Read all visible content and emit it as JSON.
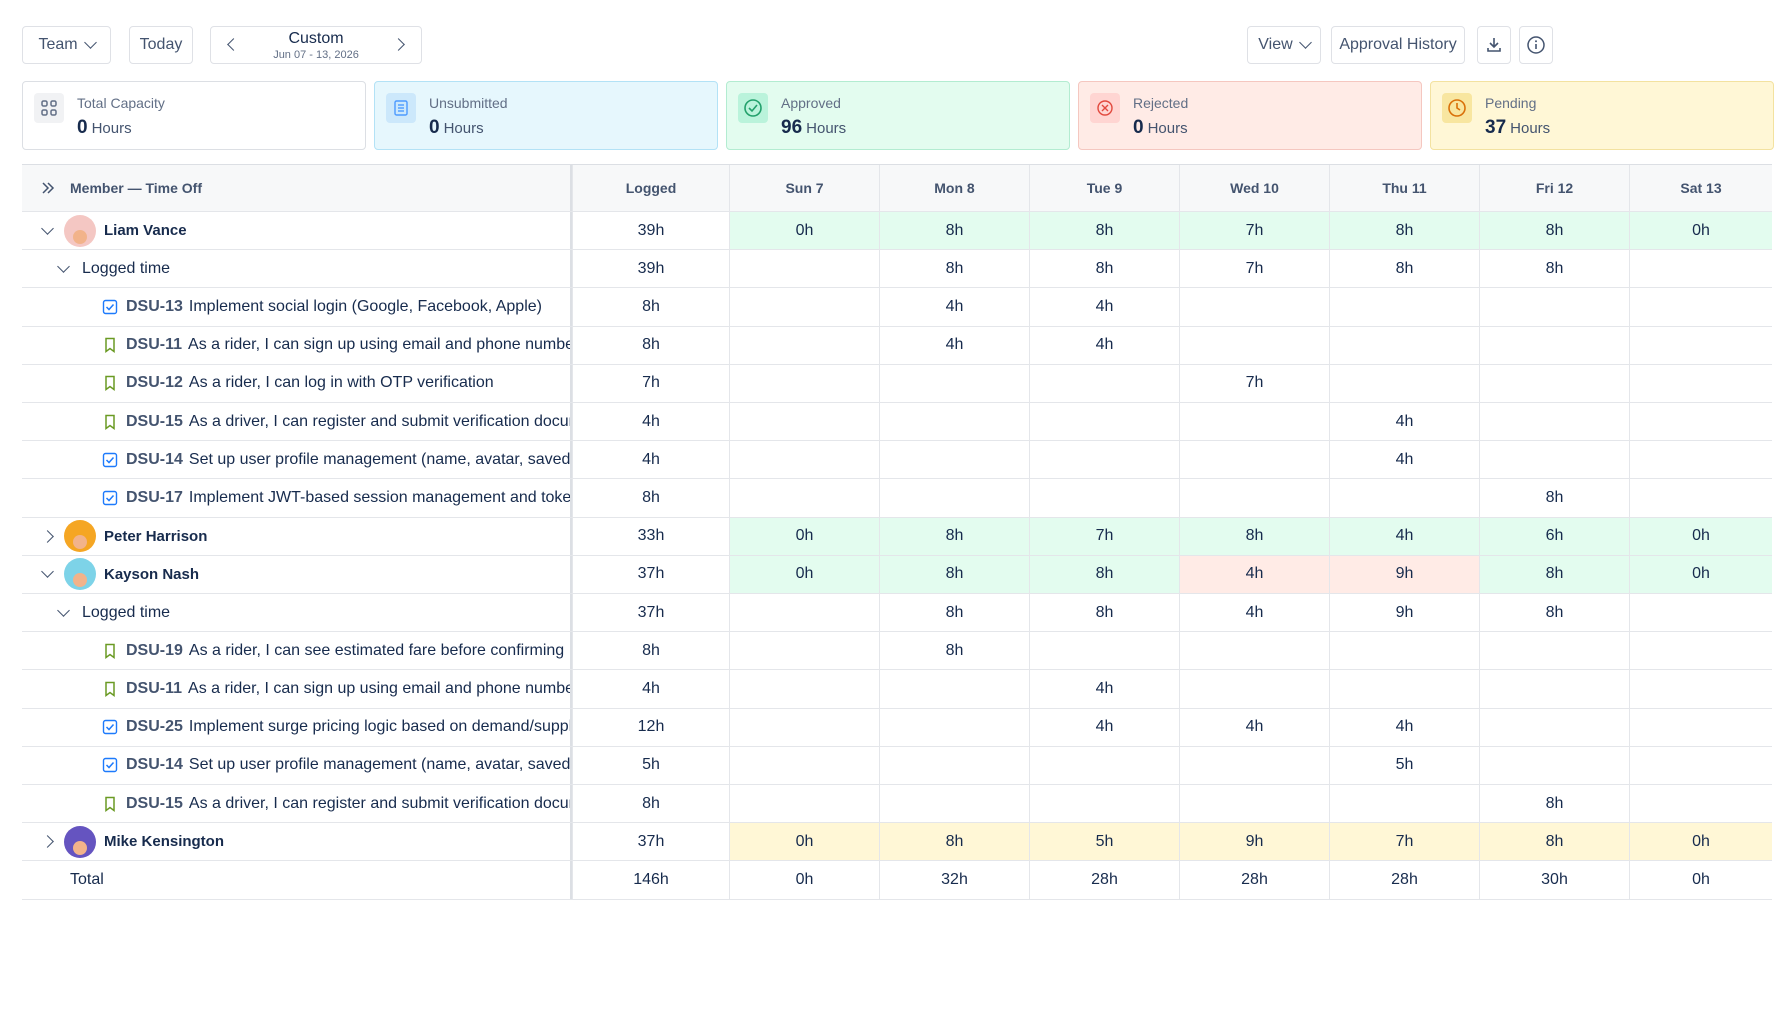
{
  "toolbar": {
    "team_label": "Team",
    "today_label": "Today",
    "range_label": "Custom",
    "range_sub": "Jun 07 - 13, 2026",
    "view_label": "View",
    "approval_history_label": "Approval History"
  },
  "cards": [
    {
      "title": "Total Capacity",
      "value": "0",
      "unit": "Hours",
      "color": "#ffffff",
      "icon": "grid-icon"
    },
    {
      "title": "Unsubmitted",
      "value": "0",
      "unit": "Hours",
      "color": "#e6f7fd",
      "icon": "document-icon"
    },
    {
      "title": "Approved",
      "value": "96",
      "unit": "Hours",
      "color": "#e3fcef",
      "icon": "check-circle-icon"
    },
    {
      "title": "Rejected",
      "value": "0",
      "unit": "Hours",
      "color": "#ffebe6",
      "icon": "x-circle-icon"
    },
    {
      "title": "Pending",
      "value": "37",
      "unit": "Hours",
      "color": "#fff7d6",
      "icon": "clock-icon"
    }
  ],
  "columns": [
    "Member — Time Off",
    "Logged",
    "Sun 7",
    "Mon 8",
    "Tue 9",
    "Wed 10",
    "Thu 11",
    "Fri 12",
    "Sat 13"
  ],
  "rows": [
    {
      "type": "member",
      "name": "Liam Vance",
      "expanded": true,
      "logged": "39h",
      "days": [
        "0h",
        "8h",
        "8h",
        "7h",
        "8h",
        "8h",
        "0h"
      ],
      "status": [
        "green",
        "green",
        "green",
        "green",
        "green",
        "green",
        "green"
      ],
      "avatar": "#f4c7c3"
    },
    {
      "type": "group",
      "label": "Logged time",
      "logged": "39h",
      "days": [
        "",
        "8h",
        "8h",
        "7h",
        "8h",
        "8h",
        ""
      ]
    },
    {
      "type": "issue",
      "icon": "task",
      "key": "DSU-13",
      "summary": "Implement social login (Google, Facebook, Apple)",
      "logged": "8h",
      "days": [
        "",
        "4h",
        "4h",
        "",
        "",
        "",
        ""
      ]
    },
    {
      "type": "issue",
      "icon": "story",
      "key": "DSU-11",
      "summary": "As a rider, I can sign up using email and phone number",
      "logged": "8h",
      "days": [
        "",
        "4h",
        "4h",
        "",
        "",
        "",
        ""
      ]
    },
    {
      "type": "issue",
      "icon": "story",
      "key": "DSU-12",
      "summary": "As a rider, I can log in with OTP verification",
      "logged": "7h",
      "days": [
        "",
        "",
        "",
        "7h",
        "",
        "",
        ""
      ]
    },
    {
      "type": "issue",
      "icon": "story",
      "key": "DSU-15",
      "summary": "As a driver, I can register and submit verification documents",
      "logged": "4h",
      "days": [
        "",
        "",
        "",
        "",
        "4h",
        "",
        ""
      ]
    },
    {
      "type": "issue",
      "icon": "task",
      "key": "DSU-14",
      "summary": "Set up user profile management (name, avatar, saved places)",
      "logged": "4h",
      "days": [
        "",
        "",
        "",
        "",
        "4h",
        "",
        ""
      ]
    },
    {
      "type": "issue",
      "icon": "task",
      "key": "DSU-17",
      "summary": "Implement JWT-based session management and token refresh",
      "logged": "8h",
      "days": [
        "",
        "",
        "",
        "",
        "",
        "8h",
        ""
      ]
    },
    {
      "type": "member",
      "name": "Peter Harrison",
      "expanded": false,
      "logged": "33h",
      "days": [
        "0h",
        "8h",
        "7h",
        "8h",
        "4h",
        "6h",
        "0h"
      ],
      "status": [
        "green",
        "green",
        "green",
        "green",
        "green",
        "green",
        "green"
      ],
      "avatar": "#f5a623"
    },
    {
      "type": "member",
      "name": "Kayson Nash",
      "expanded": true,
      "logged": "37h",
      "days": [
        "0h",
        "8h",
        "8h",
        "4h",
        "9h",
        "8h",
        "0h"
      ],
      "status": [
        "green",
        "green",
        "green",
        "red",
        "red",
        "green",
        "green"
      ],
      "avatar": "#7dd3e8"
    },
    {
      "type": "group",
      "label": "Logged time",
      "logged": "37h",
      "days": [
        "",
        "8h",
        "8h",
        "4h",
        "9h",
        "8h",
        ""
      ]
    },
    {
      "type": "issue",
      "icon": "story",
      "key": "DSU-19",
      "summary": "As a rider, I can see estimated fare before confirming",
      "logged": "8h",
      "days": [
        "",
        "8h",
        "",
        "",
        "",
        "",
        ""
      ]
    },
    {
      "type": "issue",
      "icon": "story",
      "key": "DSU-11",
      "summary": "As a rider, I can sign up using email and phone number",
      "logged": "4h",
      "days": [
        "",
        "",
        "4h",
        "",
        "",
        "",
        ""
      ]
    },
    {
      "type": "issue",
      "icon": "task",
      "key": "DSU-25",
      "summary": "Implement surge pricing logic based on demand/supply",
      "logged": "12h",
      "days": [
        "",
        "",
        "4h",
        "4h",
        "4h",
        "",
        ""
      ]
    },
    {
      "type": "issue",
      "icon": "task",
      "key": "DSU-14",
      "summary": "Set up user profile management (name, avatar, saved places)",
      "logged": "5h",
      "days": [
        "",
        "",
        "",
        "",
        "5h",
        "",
        ""
      ]
    },
    {
      "type": "issue",
      "icon": "story",
      "key": "DSU-15",
      "summary": "As a driver, I can register and submit verification documents",
      "logged": "8h",
      "days": [
        "",
        "",
        "",
        "",
        "",
        "8h",
        ""
      ]
    },
    {
      "type": "member",
      "name": "Mike Kensington",
      "expanded": false,
      "logged": "37h",
      "days": [
        "0h",
        "8h",
        "5h",
        "9h",
        "7h",
        "8h",
        "0h"
      ],
      "status": [
        "yellow",
        "yellow",
        "yellow",
        "yellow",
        "yellow",
        "yellow",
        "yellow"
      ],
      "avatar": "#6554c0"
    },
    {
      "type": "total",
      "label": "Total",
      "logged": "146h",
      "days": [
        "0h",
        "32h",
        "28h",
        "28h",
        "28h",
        "30h",
        "0h"
      ]
    }
  ]
}
